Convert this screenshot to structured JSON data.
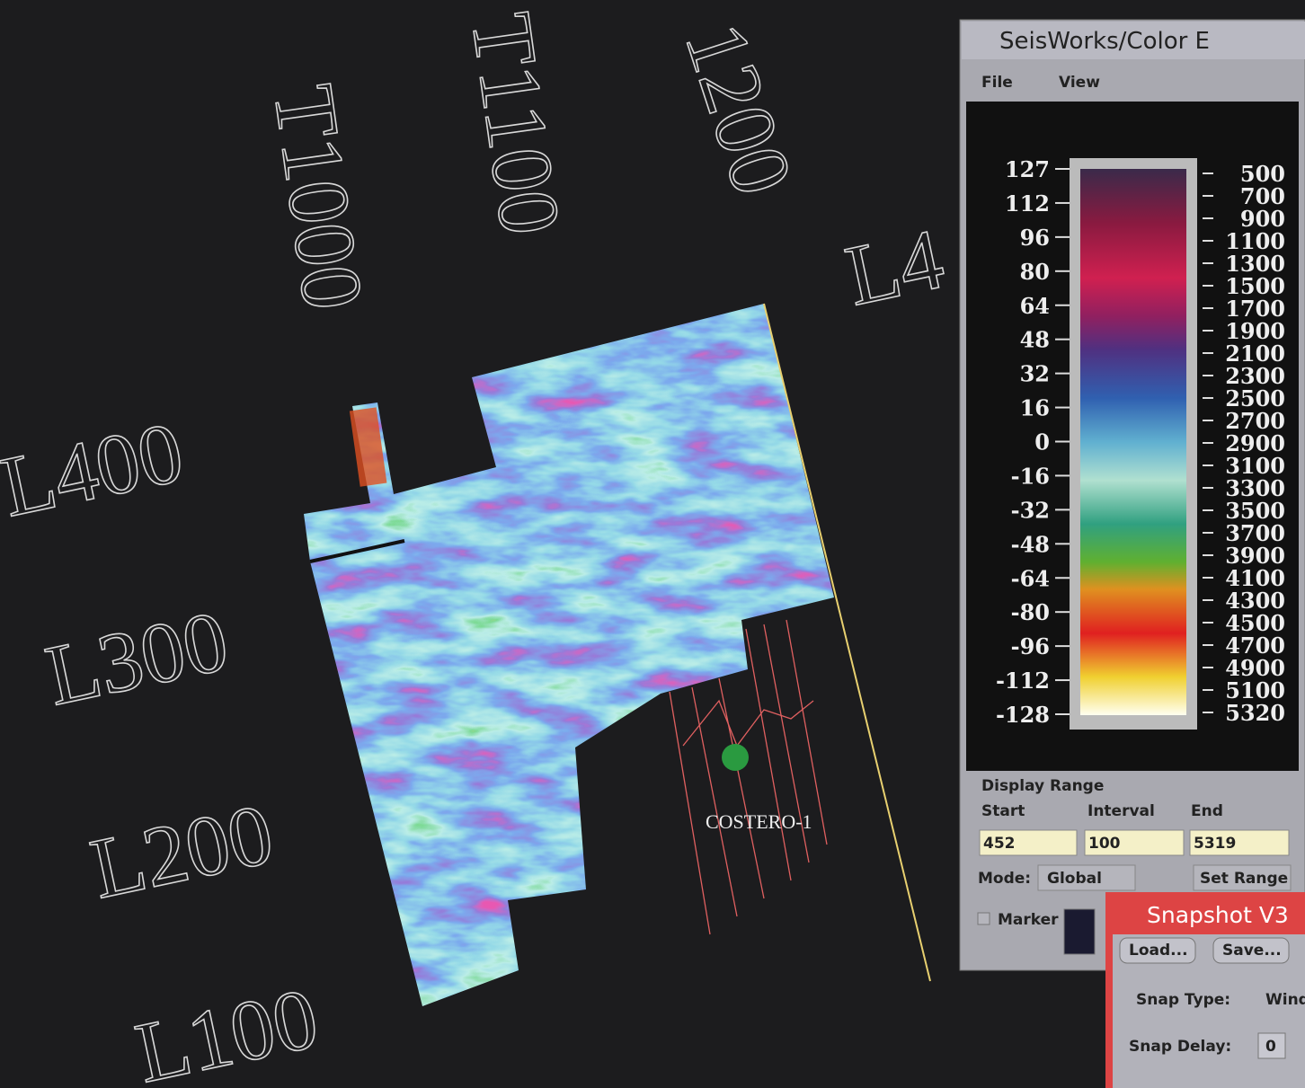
{
  "map": {
    "labels": [
      "T1000",
      "T1100",
      "1200",
      "L4",
      "L400",
      "L300",
      "L200",
      "L100"
    ],
    "well": "COSTERO-1"
  },
  "color_window": {
    "title": "SeisWorks/Color E",
    "menu": [
      "File",
      "View"
    ],
    "left_scale": [
      127,
      112,
      96,
      80,
      64,
      48,
      32,
      16,
      0,
      -16,
      -32,
      -48,
      -64,
      -80,
      -96,
      -112,
      -128
    ],
    "right_scale": [
      500,
      700,
      900,
      1100,
      1300,
      1500,
      1700,
      1900,
      2100,
      2300,
      2500,
      2700,
      2900,
      3100,
      3300,
      3500,
      3700,
      3900,
      4100,
      4300,
      4500,
      4700,
      4900,
      5100,
      5320
    ],
    "display_range": "Display Range",
    "start_label": "Start",
    "interval_label": "Interval",
    "end_label": "End",
    "start": "452",
    "interval": "100",
    "end": "5319",
    "mode_label": "Mode:",
    "mode": "Global",
    "set_range": "Set Range",
    "marker": "Marker"
  },
  "snapshot_window": {
    "title": "Snapshot V3",
    "load": "Load...",
    "save": "Save...",
    "snap_type_label": "Snap Type:",
    "snap_type": "Wind",
    "snap_delay_label": "Snap Delay:",
    "snap_delay": "0"
  }
}
